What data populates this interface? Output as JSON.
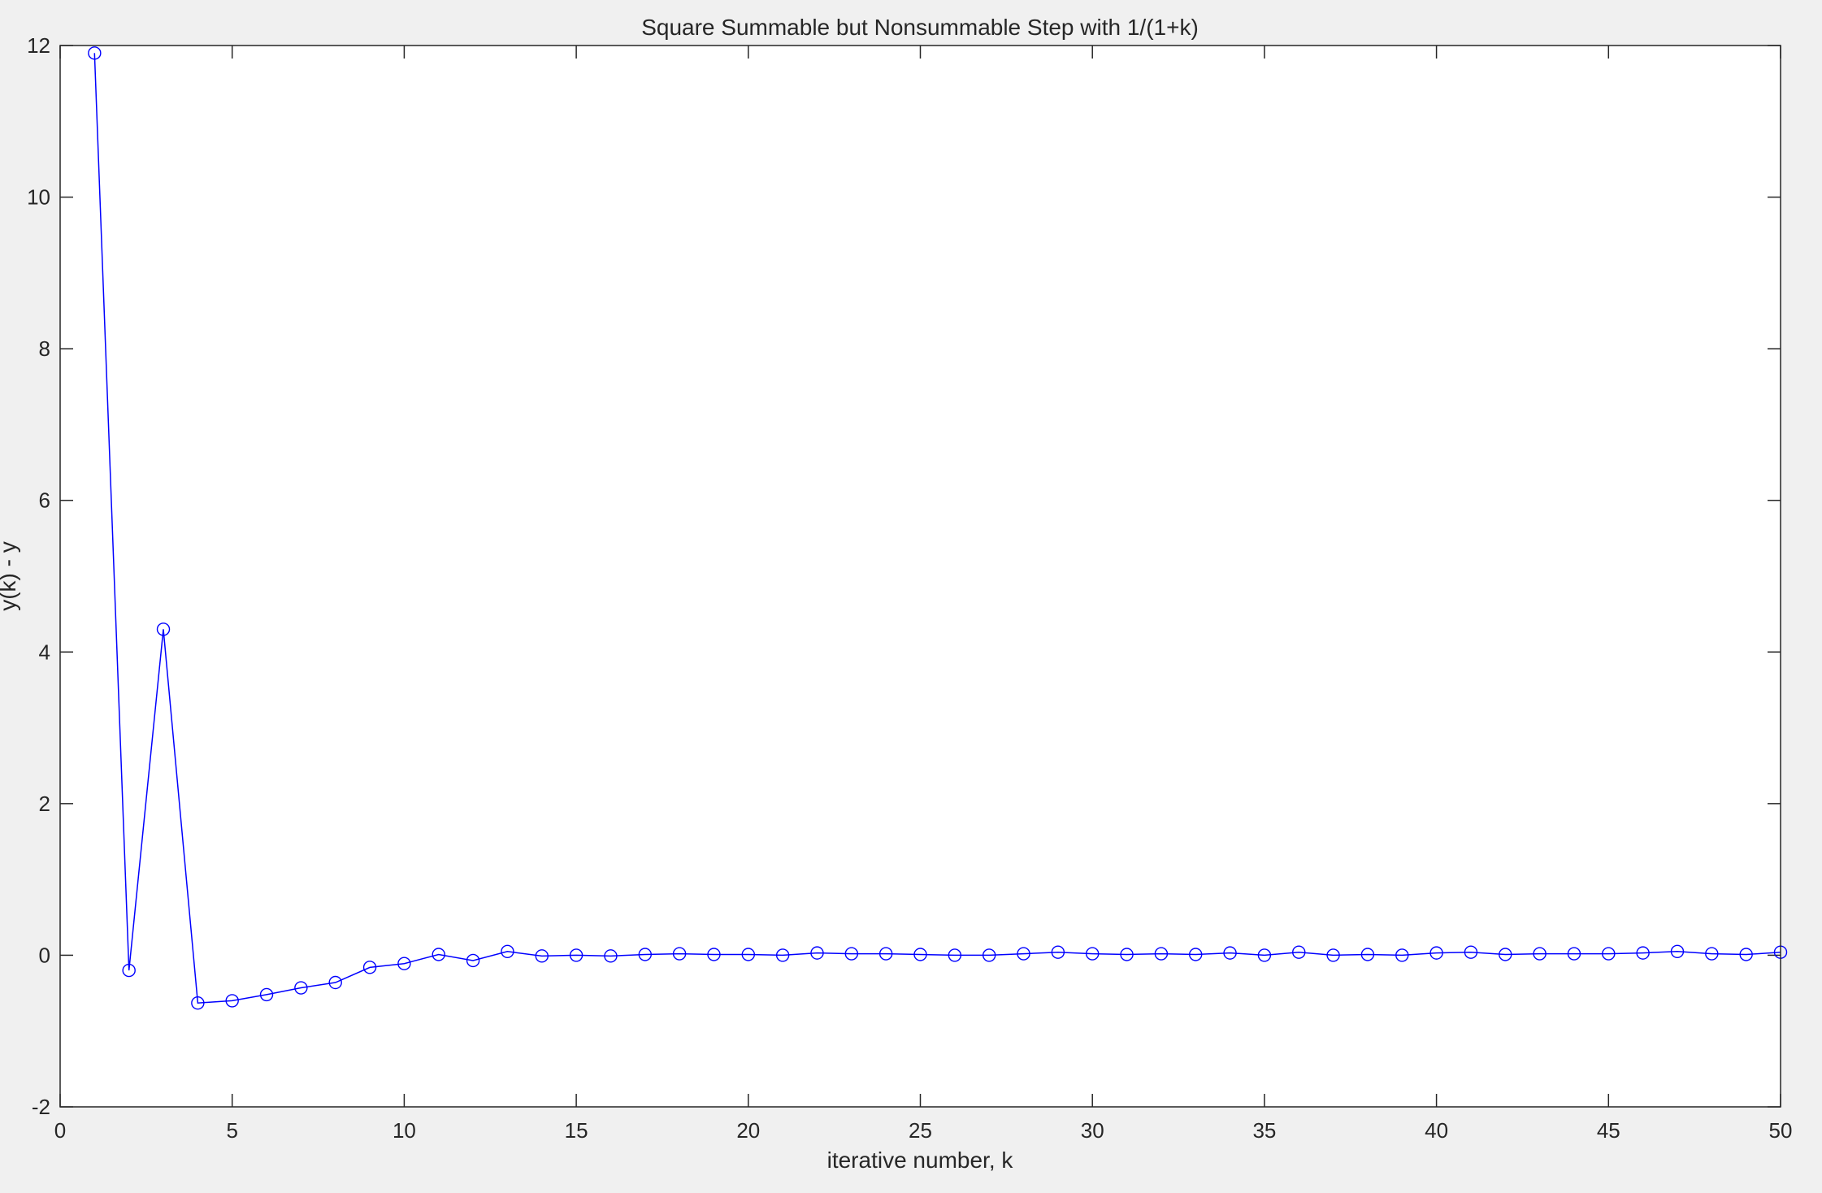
{
  "chart_data": {
    "type": "line",
    "title": "Square Summable but Nonsummable Step with 1/(1+k)",
    "xlabel": "iterative number, k",
    "ylabel": "y(k) - y",
    "xlim": [
      0,
      50
    ],
    "ylim": [
      -2,
      12
    ],
    "xticks": [
      0,
      5,
      10,
      15,
      20,
      25,
      30,
      35,
      40,
      45,
      50
    ],
    "yticks": [
      -2,
      0,
      2,
      4,
      6,
      8,
      10,
      12
    ],
    "grid": false,
    "legend": "none",
    "series": [
      {
        "color": "#0000ff",
        "marker": "circle",
        "line_style": "solid",
        "x": [
          1,
          2,
          3,
          4,
          5,
          6,
          7,
          8,
          9,
          10,
          11,
          12,
          13,
          14,
          15,
          16,
          17,
          18,
          19,
          20,
          21,
          22,
          23,
          24,
          25,
          26,
          27,
          28,
          29,
          30,
          31,
          32,
          33,
          34,
          35,
          36,
          37,
          38,
          39,
          40,
          41,
          42,
          43,
          44,
          45,
          46,
          47,
          48,
          49,
          50
        ],
        "y": [
          11.9,
          -0.2,
          4.3,
          -0.63,
          -0.6,
          -0.52,
          -0.43,
          -0.36,
          -0.16,
          -0.11,
          0.01,
          -0.07,
          0.05,
          -0.01,
          0.0,
          -0.01,
          0.01,
          0.02,
          0.01,
          0.01,
          0.0,
          0.03,
          0.02,
          0.02,
          0.01,
          0.0,
          0.0,
          0.02,
          0.04,
          0.02,
          0.01,
          0.02,
          0.01,
          0.03,
          0.0,
          0.04,
          0.0,
          0.01,
          0.0,
          0.03,
          0.04,
          0.01,
          0.02,
          0.02,
          0.02,
          0.03,
          0.05,
          0.02,
          0.01,
          0.04
        ]
      }
    ]
  }
}
